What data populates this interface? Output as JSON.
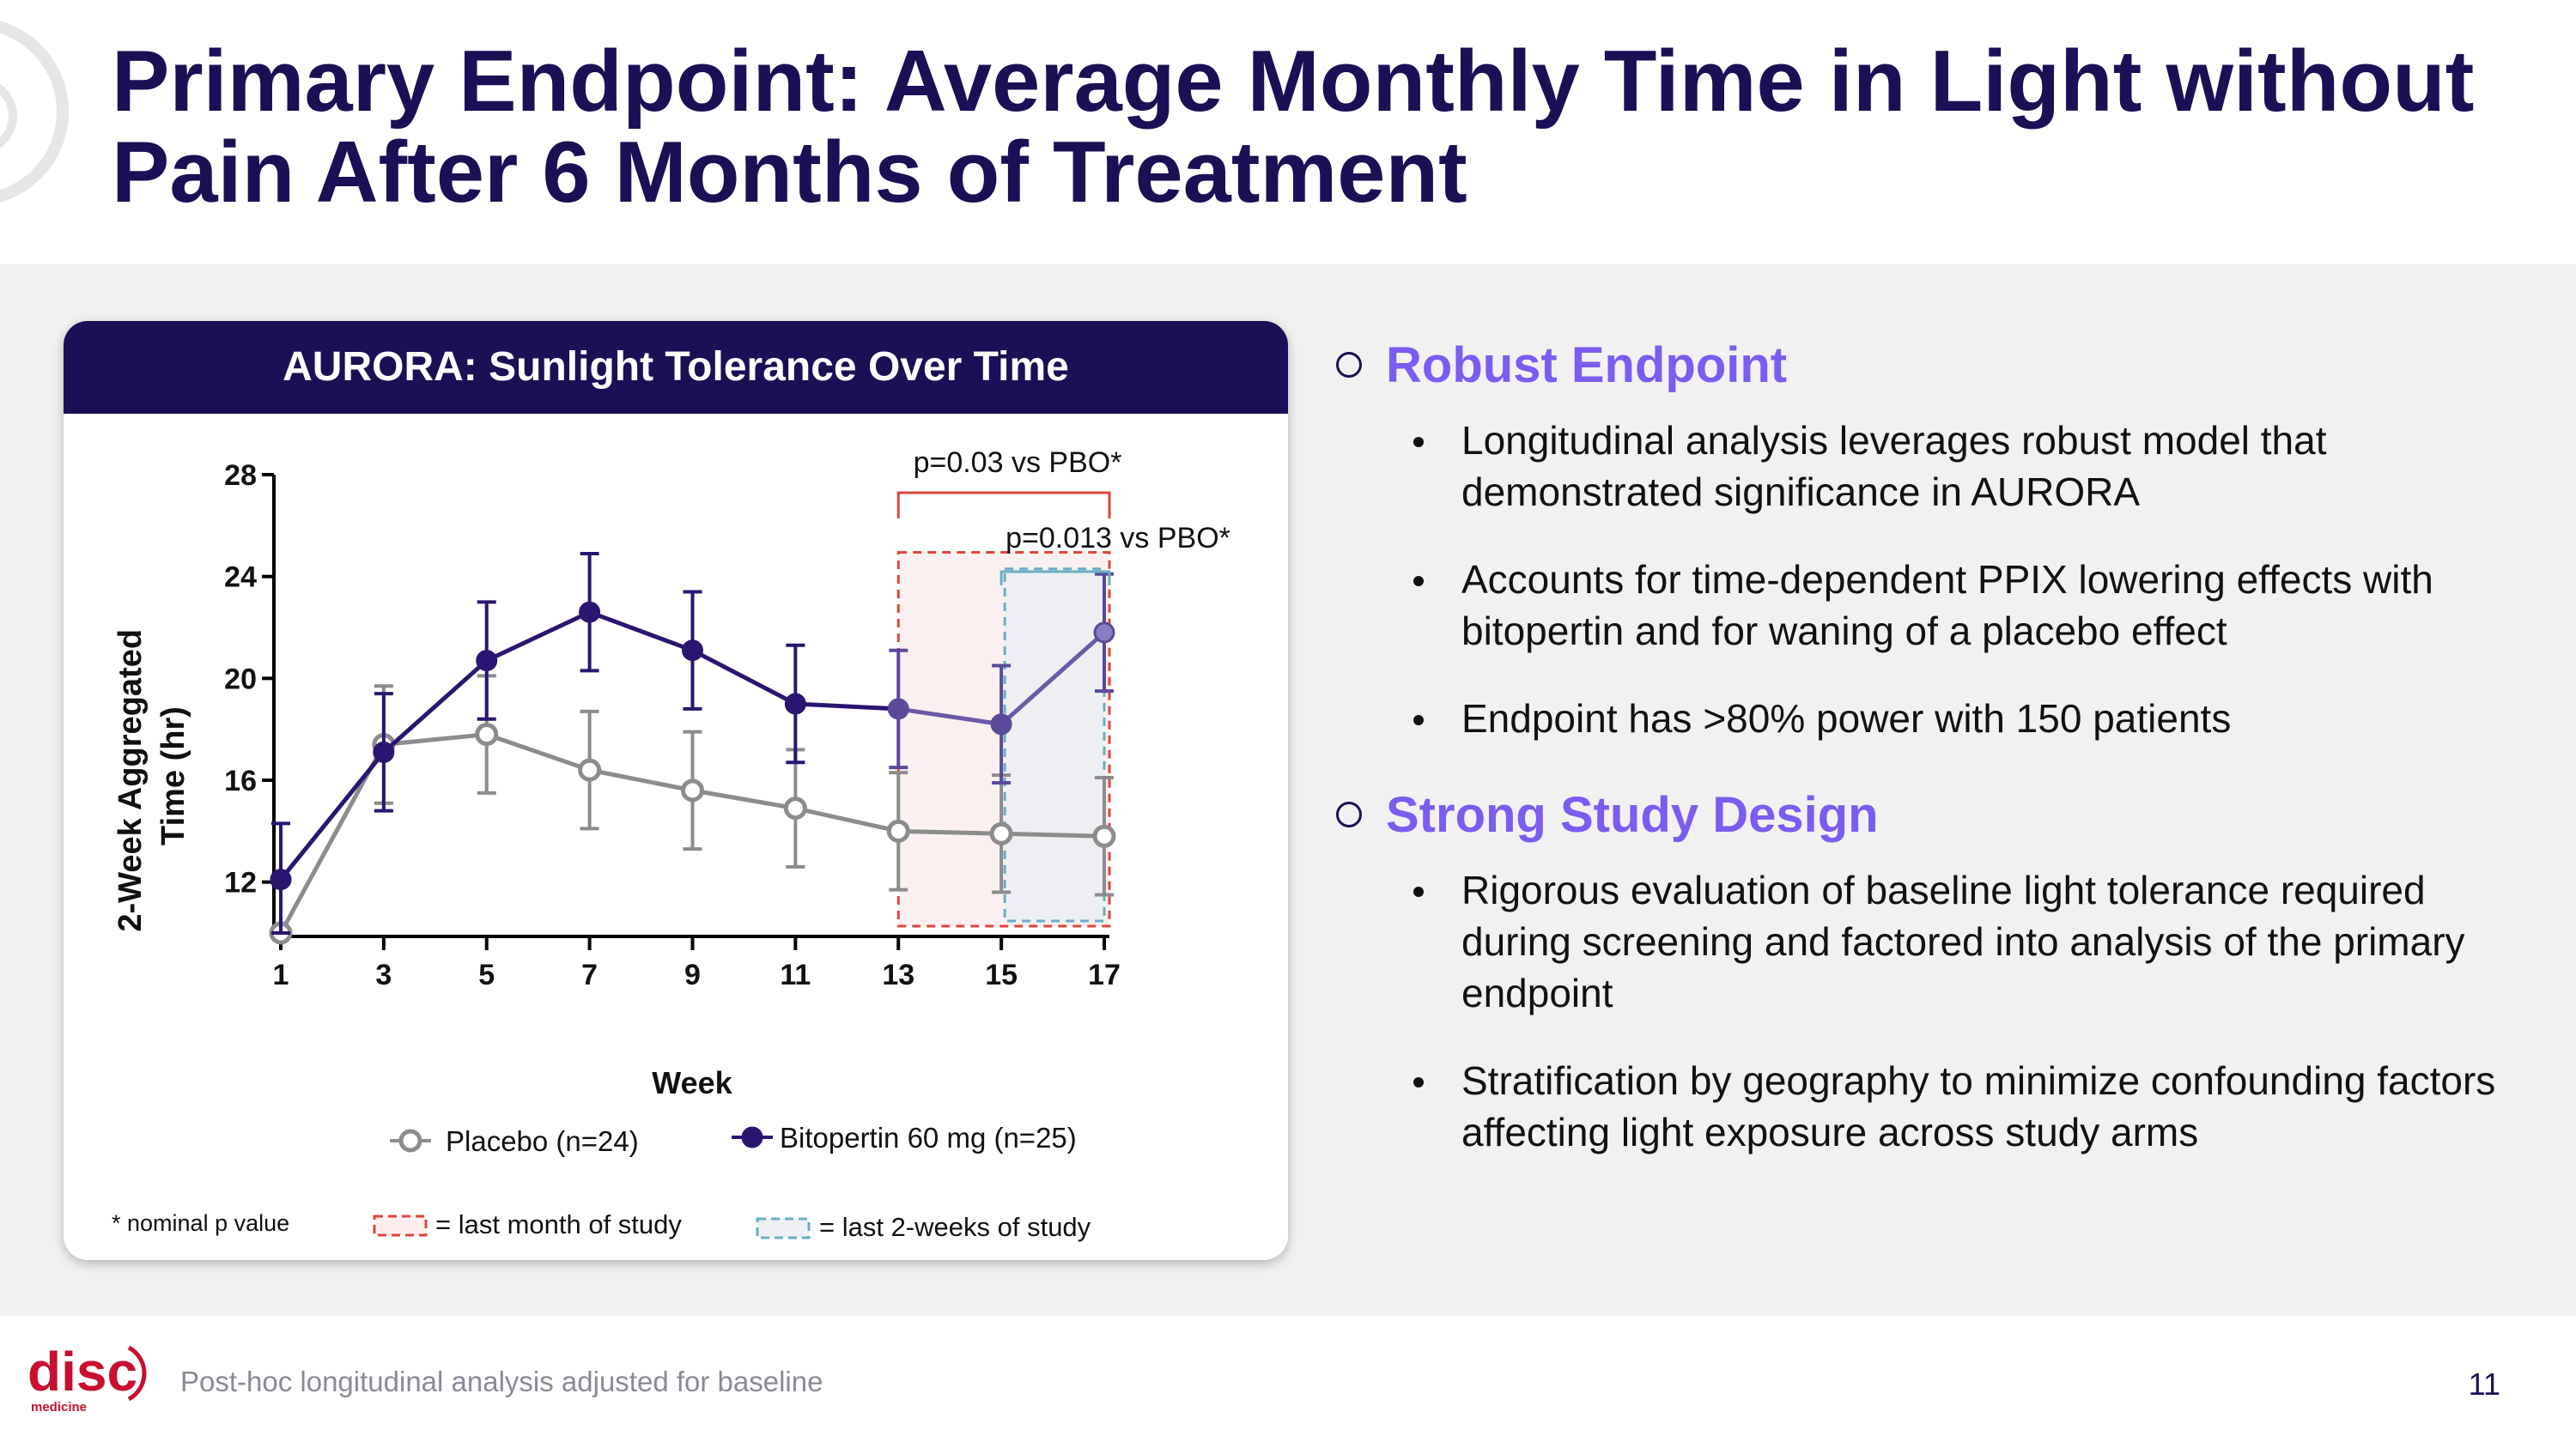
{
  "slide": {
    "title": "Primary Endpoint: Average Monthly Time in Light without Pain After 6 Months of Treatment",
    "footnote": "Post-hoc longitudinal analysis adjusted for baseline",
    "page_number": "11",
    "logo_text": "disc",
    "logo_subtext": "medicine"
  },
  "panel": {
    "header": "AURORA: Sunlight Tolerance Over Time",
    "p_value_month": "p=0.03 vs PBO*",
    "p_value_2weeks": "p=0.013 vs PBO*",
    "legend_placebo": "Placebo (n=24)",
    "legend_bitopertin": "Bitopertin 60 mg (n=25)",
    "note_nominal": "* nominal p value",
    "note_last_month": "= last month of study",
    "note_last_2weeks": "= last 2-weeks of study"
  },
  "bullets": {
    "sections": [
      {
        "heading": "Robust Endpoint",
        "items": [
          "Longitudinal analysis leverages robust model that demonstrated significance in AURORA",
          "Accounts for time-dependent PPIX lowering effects with bitopertin and for waning of a placebo effect",
          "Endpoint has >80% power with 150 patients"
        ]
      },
      {
        "heading": "Strong Study Design",
        "items": [
          "Rigorous evaluation of baseline light tolerance required during screening and factored into analysis of the primary endpoint",
          "Stratification by geography to minimize confounding factors affecting light exposure across study arms"
        ]
      }
    ]
  },
  "colors": {
    "navy": "#1c0f55",
    "accent_purple": "#7b5cf0",
    "placebo_gray": "#8c8c8c",
    "bitopertin": "#2a1670",
    "red_box": "#e0453e",
    "blue_box": "#6aaec3",
    "logo_red": "#c8102e"
  },
  "chart_data": {
    "type": "line",
    "title": "AURORA: Sunlight Tolerance Over Time",
    "xlabel": "Week",
    "ylabel": "2-Week Aggregated Time (hr)",
    "x": [
      1,
      3,
      5,
      7,
      9,
      11,
      13,
      15,
      17
    ],
    "xticks": [
      1,
      3,
      5,
      7,
      9,
      11,
      13,
      15,
      17
    ],
    "yticks": [
      12,
      16,
      20,
      24,
      28
    ],
    "ylim": [
      10,
      28
    ],
    "xlim": [
      1,
      17
    ],
    "series": [
      {
        "name": "Placebo (n=24)",
        "values": [
          10,
          17.4,
          17.8,
          16.4,
          15.6,
          14.9,
          14.0,
          13.9,
          13.8
        ],
        "error": [
          0,
          2.3,
          2.3,
          2.3,
          2.3,
          2.3,
          2.3,
          2.3,
          2.3
        ],
        "marker": "open-circle"
      },
      {
        "name": "Bitopertin 60 mg (n=25)",
        "values": [
          12.1,
          17.1,
          20.7,
          22.6,
          21.1,
          19.0,
          18.8,
          18.2,
          21.8
        ],
        "error": [
          2.2,
          2.3,
          2.3,
          2.3,
          2.3,
          2.3,
          2.3,
          2.3,
          2.3
        ],
        "marker": "filled-circle"
      }
    ],
    "highlights": [
      {
        "label": "last month of study",
        "x_from": 13,
        "x_to": 17,
        "p_value": "p=0.03 vs PBO*"
      },
      {
        "label": "last 2-weeks of study",
        "x_from": 15,
        "x_to": 17,
        "p_value": "p=0.013 vs PBO*"
      }
    ]
  }
}
